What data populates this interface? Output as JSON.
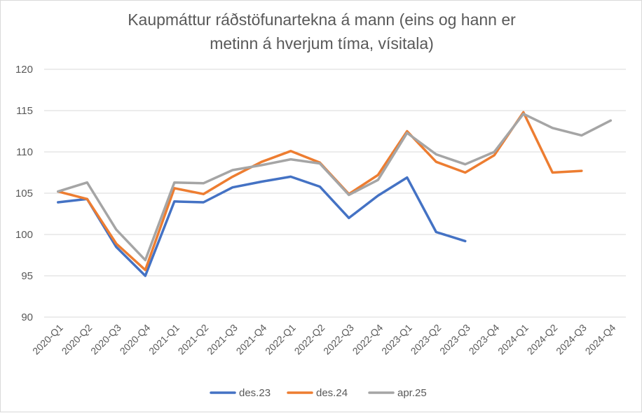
{
  "chart_data": {
    "type": "line",
    "title_line1": "Kaupmáttur ráðstöfunartekna á mann (eins og hann er",
    "title_line2": "metinn á hverjum tíma, vísitala)",
    "categories": [
      "2020-Q1",
      "2020-Q2",
      "2020-Q3",
      "2020-Q4",
      "2021-Q1",
      "2021-Q2",
      "2021-Q3",
      "2021-Q4",
      "2022-Q1",
      "2022-Q2",
      "2022-Q3",
      "2022-Q4",
      "2023-Q1",
      "2023-Q2",
      "2023-Q3",
      "2023-Q4",
      "2024-Q1",
      "2024-Q2",
      "2024-Q3",
      "2024-Q4"
    ],
    "yticks": [
      "90",
      "95",
      "100",
      "105",
      "110",
      "115",
      "120"
    ],
    "ylim": [
      90,
      120
    ],
    "grid": true,
    "legend_position": "bottom",
    "series": [
      {
        "name": "des.23",
        "color": "#4472C4",
        "values": [
          103.9,
          104.3,
          98.5,
          95.0,
          104.0,
          103.9,
          105.7,
          106.4,
          107.0,
          105.8,
          102.0,
          104.7,
          106.9,
          100.3,
          99.2,
          null,
          null,
          null,
          null,
          null
        ]
      },
      {
        "name": "des.24",
        "color": "#ED7D31",
        "values": [
          105.2,
          104.3,
          98.9,
          95.7,
          105.6,
          104.9,
          107.0,
          108.8,
          110.1,
          108.7,
          104.9,
          107.2,
          112.5,
          108.8,
          107.5,
          109.6,
          114.8,
          107.5,
          107.7,
          null
        ]
      },
      {
        "name": "apr.25",
        "color": "#A5A5A5",
        "values": [
          105.2,
          106.3,
          100.6,
          96.9,
          106.3,
          106.2,
          107.8,
          108.4,
          109.1,
          108.6,
          104.8,
          106.6,
          112.3,
          109.7,
          108.5,
          110.0,
          114.6,
          112.9,
          112.0,
          113.8
        ]
      }
    ]
  }
}
